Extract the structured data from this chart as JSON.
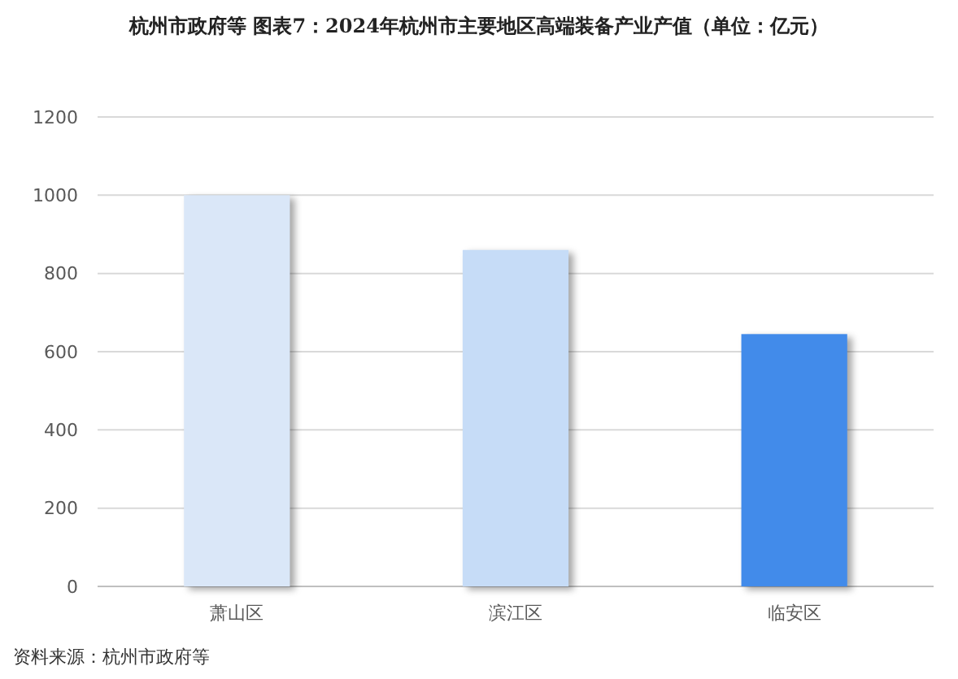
{
  "chart_data": {
    "type": "bar",
    "title": "杭州市政府等 图表7：2024年杭州市主要地区高端装备产业产值（单位：亿元）",
    "categories": [
      "萧山区",
      "滨江区",
      "临安区"
    ],
    "values": [
      1000,
      860,
      645
    ],
    "colors": [
      "#dae7f8",
      "#c6dcf7",
      "#428bea"
    ],
    "ylim": [
      0,
      1200
    ],
    "yticks": [
      0,
      200,
      400,
      600,
      800,
      1000,
      1200
    ],
    "grid": "y",
    "annotations": [
      "资料来源：杭州市政府等"
    ]
  }
}
